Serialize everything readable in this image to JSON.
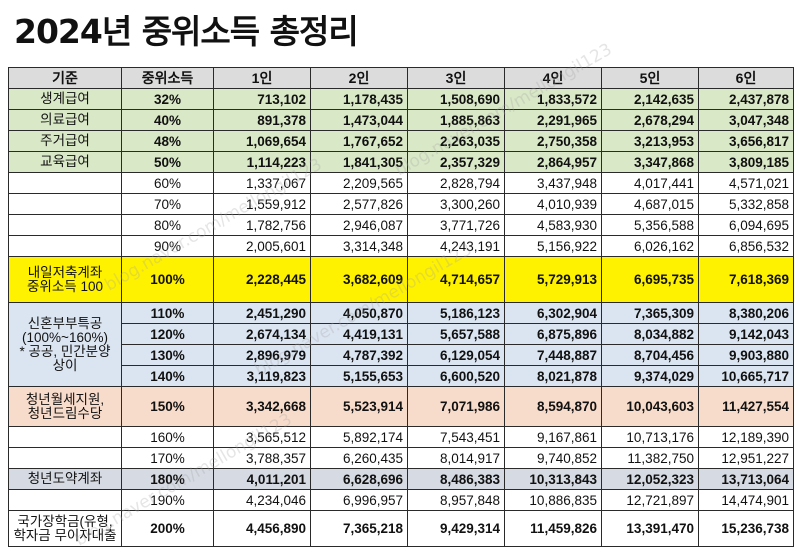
{
  "title": "2024년 중위소득 총정리",
  "headers": [
    "기준",
    "중위소득",
    "1인",
    "2인",
    "3인",
    "4인",
    "5인",
    "6인"
  ],
  "watermark": "blog.naver.com/mellongil123",
  "groups": {
    "saenggye": "생계급여",
    "uiryo": "의료급여",
    "jugeo": "주거급여",
    "gyoyuk": "교육급여",
    "naeil": "내일저축계좌\n중위소득 100",
    "sinhon": "신혼부부특공\n(100%~160%)\n* 공공, 민간분양\n상이",
    "cheongnyeon": "청년월세지원,\n청년드림수당",
    "doyak": "청년도약계좌",
    "gukga": "국가장학금(유형,\n학자금 무이자대출"
  },
  "rows": [
    {
      "pct": "32%",
      "vals": [
        "713,102",
        "1,178,435",
        "1,508,690",
        "1,833,572",
        "2,142,635",
        "2,437,878"
      ]
    },
    {
      "pct": "40%",
      "vals": [
        "891,378",
        "1,473,044",
        "1,885,863",
        "2,291,965",
        "2,678,294",
        "3,047,348"
      ]
    },
    {
      "pct": "48%",
      "vals": [
        "1,069,654",
        "1,767,652",
        "2,263,035",
        "2,750,358",
        "3,213,953",
        "3,656,817"
      ]
    },
    {
      "pct": "50%",
      "vals": [
        "1,114,223",
        "1,841,305",
        "2,357,329",
        "2,864,957",
        "3,347,868",
        "3,809,185"
      ]
    },
    {
      "pct": "60%",
      "vals": [
        "1,337,067",
        "2,209,565",
        "2,828,794",
        "3,437,948",
        "4,017,441",
        "4,571,021"
      ]
    },
    {
      "pct": "70%",
      "vals": [
        "1,559,912",
        "2,577,826",
        "3,300,260",
        "4,010,939",
        "4,687,015",
        "5,332,858"
      ]
    },
    {
      "pct": "80%",
      "vals": [
        "1,782,756",
        "2,946,087",
        "3,771,726",
        "4,583,930",
        "5,356,588",
        "6,094,695"
      ]
    },
    {
      "pct": "90%",
      "vals": [
        "2,005,601",
        "3,314,348",
        "4,243,191",
        "5,156,922",
        "6,026,162",
        "6,856,532"
      ]
    },
    {
      "pct": "100%",
      "vals": [
        "2,228,445",
        "3,682,609",
        "4,714,657",
        "5,729,913",
        "6,695,735",
        "7,618,369"
      ]
    },
    {
      "pct": "110%",
      "vals": [
        "2,451,290",
        "4,050,870",
        "5,186,123",
        "6,302,904",
        "7,365,309",
        "8,380,206"
      ]
    },
    {
      "pct": "120%",
      "vals": [
        "2,674,134",
        "4,419,131",
        "5,657,588",
        "6,875,896",
        "8,034,882",
        "9,142,043"
      ]
    },
    {
      "pct": "130%",
      "vals": [
        "2,896,979",
        "4,787,392",
        "6,129,054",
        "7,448,887",
        "8,704,456",
        "9,903,880"
      ]
    },
    {
      "pct": "140%",
      "vals": [
        "3,119,823",
        "5,155,653",
        "6,600,520",
        "8,021,878",
        "9,374,029",
        "10,665,717"
      ]
    },
    {
      "pct": "150%",
      "vals": [
        "3,342,668",
        "5,523,914",
        "7,071,986",
        "8,594,870",
        "10,043,603",
        "11,427,554"
      ]
    },
    {
      "pct": "160%",
      "vals": [
        "3,565,512",
        "5,892,174",
        "7,543,451",
        "9,167,861",
        "10,713,176",
        "12,189,390"
      ]
    },
    {
      "pct": "170%",
      "vals": [
        "3,788,357",
        "6,260,435",
        "8,014,917",
        "9,740,852",
        "11,382,750",
        "12,951,227"
      ]
    },
    {
      "pct": "180%",
      "vals": [
        "4,011,201",
        "6,628,696",
        "8,486,383",
        "10,313,843",
        "12,052,323",
        "13,713,064"
      ]
    },
    {
      "pct": "190%",
      "vals": [
        "4,234,046",
        "6,996,957",
        "8,957,848",
        "10,886,835",
        "12,721,897",
        "14,474,901"
      ]
    },
    {
      "pct": "200%",
      "vals": [
        "4,456,890",
        "7,365,218",
        "9,429,314",
        "11,459,826",
        "13,391,470",
        "15,236,738"
      ]
    }
  ],
  "colors": {
    "green": "#d9e8c6",
    "yellow": "#fff200",
    "blue": "#dbe5f1",
    "peach": "#f8dccb",
    "slate": "#d6dbe3",
    "header": "#dcdcdc"
  }
}
